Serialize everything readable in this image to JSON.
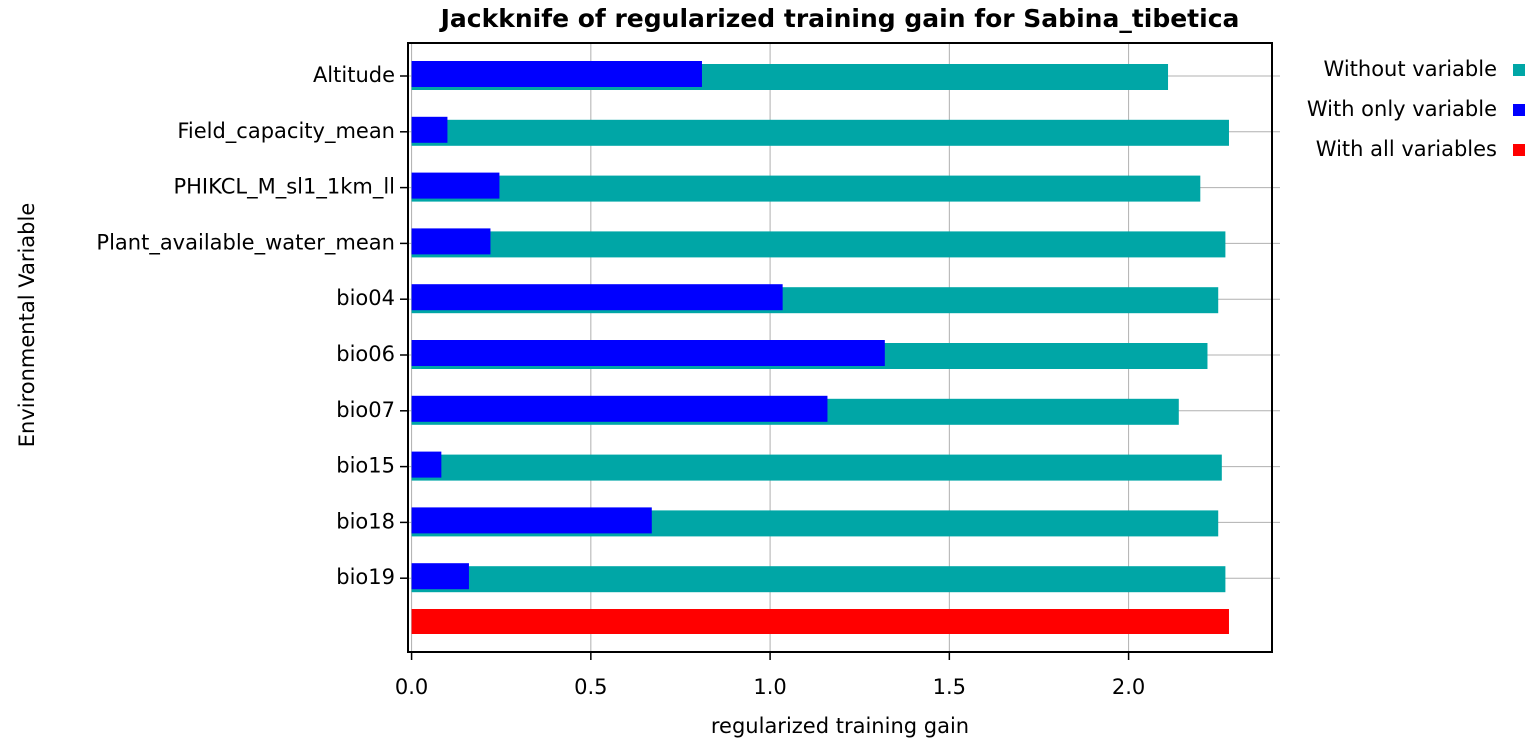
{
  "chart_data": {
    "type": "bar",
    "orientation": "horizontal",
    "title": "Jackknife of regularized training gain for Sabina_tibetica",
    "x_label": "regularized training gain",
    "y_label": "Environmental Variable",
    "categories": [
      "Altitude",
      "Field_capacity_mean",
      "PHIKCL_M_sl1_1km_ll",
      "Plant_available_water_mean",
      "bio04",
      "bio06",
      "bio07",
      "bio15",
      "bio18",
      "bio19"
    ],
    "series": [
      {
        "name": "Without variable",
        "color": "#00a6a6",
        "values": [
          2.11,
          2.28,
          2.2,
          2.27,
          2.25,
          2.22,
          2.14,
          2.26,
          2.25,
          2.27
        ]
      },
      {
        "name": "With only variable",
        "color": "#0000ff",
        "values": [
          0.81,
          0.1,
          0.245,
          0.22,
          1.035,
          1.32,
          1.16,
          0.083,
          0.67,
          0.16
        ]
      }
    ],
    "all_variables": {
      "name": "With all variables",
      "color": "#ff0000",
      "value": 2.28
    },
    "xlim": [
      -0.01,
      2.4
    ],
    "xticks": [
      {
        "value": 0,
        "label": "0.0"
      },
      0.5,
      {
        "value": 1,
        "label": "1.0"
      },
      1.5,
      {
        "value": 2,
        "label": "2.0"
      }
    ],
    "grid": true,
    "legend": "right"
  }
}
